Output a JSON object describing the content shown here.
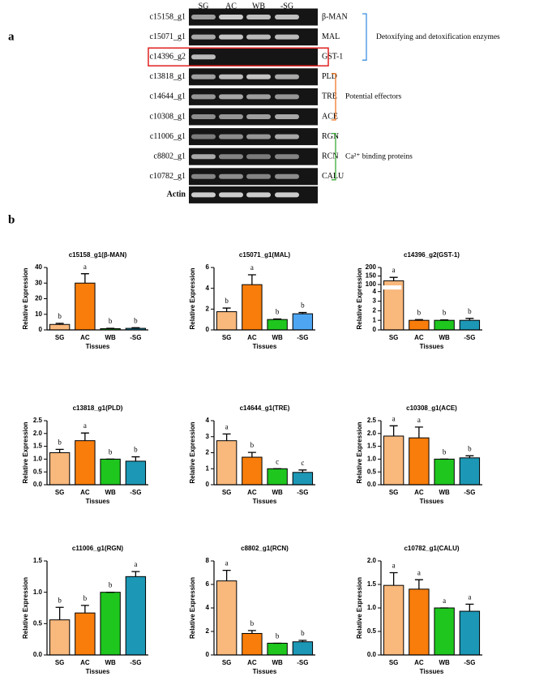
{
  "panel_labels": [
    "a",
    "b"
  ],
  "gel": {
    "columns": [
      "SG",
      "AC",
      "WB",
      "-SG"
    ],
    "groups": [
      {
        "label": "Detoxifying and detoxification enzymes",
        "color": "#3b8fe0",
        "genes": [
          {
            "id": "c15158_g1",
            "name": "β-MAN"
          },
          {
            "id": "c15071_g1",
            "name": "MAL"
          },
          {
            "id": "c14396_g2",
            "name": "GST-1",
            "highlighted": true
          }
        ]
      },
      {
        "label": "Potential effectors",
        "color": "#f07a2a",
        "genes": [
          {
            "id": "c13818_g1",
            "name": "PLD"
          },
          {
            "id": "c14644_g1",
            "name": "TRE"
          },
          {
            "id": "c10308_g1",
            "name": "ACE"
          }
        ]
      },
      {
        "label": "Ca²⁺ binding proteins",
        "color": "#3aaa35",
        "genes": [
          {
            "id": "c11006_g1",
            "name": "RGN"
          },
          {
            "id": "c8802_g1",
            "name": "RCN"
          },
          {
            "id": "c10782_g1",
            "name": "CALU"
          }
        ]
      }
    ],
    "control": "Actin"
  },
  "chart_data": [
    {
      "type": "bar",
      "title": "c15158_g1(β-MAN)",
      "ylabel": "Relative Expression",
      "xlabel": "Tissues",
      "categories": [
        "SG",
        "AC",
        "WB",
        "-SG"
      ],
      "values": [
        3.5,
        30,
        0.8,
        1.0
      ],
      "errors": [
        0.7,
        6,
        0.2,
        0.4
      ],
      "letters": [
        "b",
        "a",
        "b",
        "b"
      ],
      "colors": [
        "#f9b87c",
        "#f97d0a",
        "#1ec61e",
        "#1c97b5"
      ],
      "ylim": [
        0,
        40
      ],
      "yticks": [
        0,
        10,
        20,
        30,
        40
      ]
    },
    {
      "type": "bar",
      "title": "c15071_g1(MAL)",
      "ylabel": "Relative Expression",
      "xlabel": "Tissues",
      "categories": [
        "SG",
        "AC",
        "WB",
        "-SG"
      ],
      "values": [
        1.75,
        4.35,
        1.0,
        1.55
      ],
      "errors": [
        0.35,
        0.95,
        0.05,
        0.12
      ],
      "letters": [
        "b",
        "a",
        "b",
        "b"
      ],
      "colors": [
        "#f9b87c",
        "#f97d0a",
        "#1ec61e",
        "#4ea6f2"
      ],
      "ylim": [
        0,
        6
      ],
      "yticks": [
        0,
        2,
        4,
        6
      ]
    },
    {
      "type": "bar",
      "title": "c14396_g2(GST-1)",
      "ylabel": "Relative Expression",
      "xlabel": "Tissues",
      "categories": [
        "SG",
        "AC",
        "WB",
        "-SG"
      ],
      "values": [
        122,
        1.0,
        1.0,
        1.0
      ],
      "errors": [
        20,
        0.08,
        0.05,
        0.2
      ],
      "letters": [
        "a",
        "b",
        "b",
        "b"
      ],
      "colors": [
        "#f9b87c",
        "#f97d0a",
        "#1ec61e",
        "#1c97b5"
      ],
      "ylim": [
        0,
        200
      ],
      "ybreak": [
        4.3,
        90
      ],
      "yticks": [
        0,
        1,
        2,
        3,
        4,
        100,
        150,
        200
      ]
    },
    {
      "type": "bar",
      "title": "c13818_g1(PLD)",
      "ylabel": "Relative Expression",
      "xlabel": "Tissues",
      "categories": [
        "SG",
        "AC",
        "WB",
        "-SG"
      ],
      "values": [
        1.25,
        1.72,
        1.0,
        0.92
      ],
      "errors": [
        0.13,
        0.3,
        0,
        0.17
      ],
      "letters": [
        "b",
        "a",
        "b",
        "b"
      ],
      "colors": [
        "#f9b87c",
        "#f97d0a",
        "#1ec61e",
        "#1c97b5"
      ],
      "ylim": [
        0,
        2.5
      ],
      "yticks": [
        {
          "value": 0,
          "label": "0.0"
        },
        0.5,
        {
          "value": 1,
          "label": "1.0"
        },
        1.5,
        {
          "value": 2,
          "label": "2.0"
        },
        2.5
      ]
    },
    {
      "type": "bar",
      "title": "c14644_g1(TRE)",
      "ylabel": "Relative Expression",
      "xlabel": "Tissues",
      "categories": [
        "SG",
        "AC",
        "WB",
        "-SG"
      ],
      "values": [
        2.75,
        1.72,
        1.0,
        0.77
      ],
      "errors": [
        0.42,
        0.3,
        0,
        0.15
      ],
      "letters": [
        "a",
        "b",
        "c",
        "c"
      ],
      "colors": [
        "#f9b87c",
        "#f97d0a",
        "#1ec61e",
        "#1c97b5"
      ],
      "ylim": [
        0,
        4
      ],
      "yticks": [
        0,
        1,
        2,
        3,
        4
      ]
    },
    {
      "type": "bar",
      "title": "c10308_g1(ACE)",
      "ylabel": "Relative Expression",
      "xlabel": "Tissues",
      "categories": [
        "SG",
        "AC",
        "WB",
        "-SG"
      ],
      "values": [
        1.9,
        1.83,
        1.0,
        1.05
      ],
      "errors": [
        0.4,
        0.42,
        0,
        0.08
      ],
      "letters": [
        "a",
        "a",
        "b",
        "b"
      ],
      "colors": [
        "#f9b87c",
        "#f97d0a",
        "#1ec61e",
        "#1c97b5"
      ],
      "ylim": [
        0,
        2.5
      ],
      "yticks": [
        {
          "value": 0,
          "label": "0.0"
        },
        0.5,
        {
          "value": 1,
          "label": "1.0"
        },
        1.5,
        {
          "value": 2,
          "label": "2.0"
        },
        2.5
      ]
    },
    {
      "type": "bar",
      "title": "c11006_g1(RGN)",
      "ylabel": "Relative Expression",
      "xlabel": "Tissues",
      "categories": [
        "SG",
        "AC",
        "WB",
        "-SG"
      ],
      "values": [
        0.56,
        0.67,
        1.0,
        1.25
      ],
      "errors": [
        0.2,
        0.12,
        0,
        0.08
      ],
      "letters": [
        "b",
        "b",
        "b",
        "a"
      ],
      "colors": [
        "#f9b87c",
        "#f97d0a",
        "#1ec61e",
        "#1c97b5"
      ],
      "ylim": [
        0,
        1.5
      ],
      "yticks": [
        {
          "value": 0,
          "label": "0.0"
        },
        0.5,
        {
          "value": 1,
          "label": "1.0"
        },
        1.5
      ]
    },
    {
      "type": "bar",
      "title": "c8802_g1(RCN)",
      "ylabel": "Relative Expression",
      "xlabel": "Tissues",
      "categories": [
        "SG",
        "AC",
        "WB",
        "-SG"
      ],
      "values": [
        6.3,
        1.83,
        1.0,
        1.12
      ],
      "errors": [
        0.9,
        0.25,
        0,
        0.12
      ],
      "letters": [
        "a",
        "b",
        "b",
        "b"
      ],
      "colors": [
        "#f9b87c",
        "#f97d0a",
        "#1ec61e",
        "#1c97b5"
      ],
      "ylim": [
        0,
        8
      ],
      "yticks": [
        0,
        2,
        4,
        6,
        8
      ]
    },
    {
      "type": "bar",
      "title": "c10782_g1(CALU)",
      "ylabel": "Relative Expression",
      "xlabel": "Tissues",
      "categories": [
        "SG",
        "AC",
        "WB",
        "-SG"
      ],
      "values": [
        1.48,
        1.4,
        1.0,
        0.93
      ],
      "errors": [
        0.27,
        0.2,
        0,
        0.15
      ],
      "letters": [
        "a",
        "a",
        "a",
        "a"
      ],
      "colors": [
        "#f9b87c",
        "#f97d0a",
        "#1ec61e",
        "#1c97b5"
      ],
      "ylim": [
        0,
        2
      ],
      "yticks": [
        {
          "value": 0,
          "label": "0.0"
        },
        0.5,
        {
          "value": 1,
          "label": "1.0"
        },
        1.5,
        {
          "value": 2,
          "label": "2.0"
        }
      ]
    }
  ]
}
